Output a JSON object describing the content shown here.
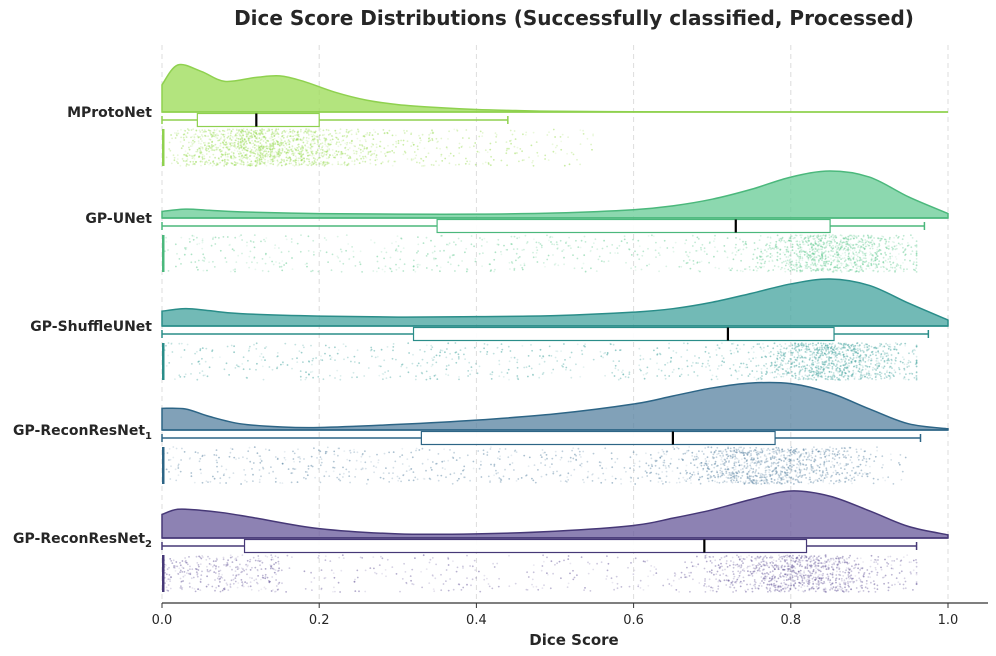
{
  "chart_data": {
    "type": "raincloud",
    "title": "Dice Score Distributions (Successfully classified, Processed)",
    "xlabel": "Dice Score",
    "xlim": [
      0.0,
      1.0
    ],
    "xticks": [
      0.0,
      0.2,
      0.4,
      0.6,
      0.8,
      1.0
    ],
    "xtick_labels": [
      "0.0",
      "0.2",
      "0.4",
      "0.6",
      "0.8",
      "1.0"
    ],
    "grid": "vertical dashed",
    "series": [
      {
        "name": "MProtoNet",
        "base": "MProtoNet",
        "sub": "",
        "color": "#9ddd5a",
        "edge": "#8fd14f",
        "box": {
          "whisker_low": 0.0,
          "q1": 0.045,
          "median": 0.12,
          "q3": 0.2,
          "whisker_high": 0.44
        },
        "density_x": [
          0.0,
          0.02,
          0.05,
          0.08,
          0.12,
          0.15,
          0.18,
          0.22,
          0.26,
          0.3,
          0.35,
          0.4,
          0.45,
          0.5,
          0.6,
          0.7,
          0.8,
          0.9,
          1.0
        ],
        "density_y": [
          0.55,
          0.95,
          0.82,
          0.62,
          0.7,
          0.73,
          0.62,
          0.4,
          0.24,
          0.15,
          0.09,
          0.05,
          0.03,
          0.015,
          0.005,
          0.002,
          0.0,
          0.0,
          0.0
        ],
        "points": {
          "count": 1600,
          "seed": 11,
          "dist": "low"
        }
      },
      {
        "name": "GP-UNet",
        "base": "GP-UNet",
        "sub": "",
        "color": "#6ccd98",
        "edge": "#4bb87c",
        "box": {
          "whisker_low": 0.0,
          "q1": 0.35,
          "median": 0.73,
          "q3": 0.85,
          "whisker_high": 0.97
        },
        "density_x": [
          0.0,
          0.03,
          0.06,
          0.1,
          0.2,
          0.3,
          0.4,
          0.5,
          0.6,
          0.65,
          0.7,
          0.75,
          0.8,
          0.85,
          0.9,
          0.95,
          1.0
        ],
        "density_y": [
          0.12,
          0.16,
          0.14,
          0.11,
          0.08,
          0.07,
          0.07,
          0.09,
          0.15,
          0.22,
          0.34,
          0.52,
          0.74,
          0.85,
          0.74,
          0.38,
          0.08
        ],
        "points": {
          "count": 1500,
          "seed": 22,
          "dist": "high"
        }
      },
      {
        "name": "GP-ShuffleUNet",
        "base": "GP-ShuffleUNet",
        "sub": "",
        "color": "#4aa7a2",
        "edge": "#2a8d89",
        "box": {
          "whisker_low": 0.0,
          "q1": 0.32,
          "median": 0.72,
          "q3": 0.855,
          "whisker_high": 0.975
        },
        "density_x": [
          0.0,
          0.03,
          0.06,
          0.1,
          0.2,
          0.3,
          0.4,
          0.5,
          0.6,
          0.65,
          0.7,
          0.75,
          0.8,
          0.85,
          0.9,
          0.95,
          1.0
        ],
        "density_y": [
          0.3,
          0.35,
          0.31,
          0.25,
          0.2,
          0.18,
          0.19,
          0.21,
          0.28,
          0.35,
          0.48,
          0.66,
          0.85,
          0.95,
          0.82,
          0.46,
          0.12
        ],
        "points": {
          "count": 1500,
          "seed": 33,
          "dist": "high"
        }
      },
      {
        "name": "GP-ReconResNet1",
        "base": "GP-ReconResNet",
        "sub": "1",
        "color": "#5d86a4",
        "edge": "#2d6586",
        "box": {
          "whisker_low": 0.0,
          "q1": 0.33,
          "median": 0.65,
          "q3": 0.78,
          "whisker_high": 0.965
        },
        "density_x": [
          0.0,
          0.03,
          0.06,
          0.1,
          0.15,
          0.2,
          0.3,
          0.4,
          0.5,
          0.6,
          0.65,
          0.7,
          0.75,
          0.8,
          0.85,
          0.9,
          0.95,
          1.0
        ],
        "density_y": [
          0.35,
          0.34,
          0.22,
          0.1,
          0.05,
          0.04,
          0.09,
          0.16,
          0.26,
          0.42,
          0.55,
          0.68,
          0.76,
          0.75,
          0.6,
          0.34,
          0.1,
          0.02
        ],
        "points": {
          "count": 1500,
          "seed": 44,
          "dist": "mid"
        }
      },
      {
        "name": "GP-ReconResNet2",
        "base": "GP-ReconResNet",
        "sub": "2",
        "color": "#6d5f9e",
        "edge": "#463877",
        "box": {
          "whisker_low": 0.0,
          "q1": 0.105,
          "median": 0.69,
          "q3": 0.82,
          "whisker_high": 0.96
        },
        "density_x": [
          0.0,
          0.02,
          0.05,
          0.08,
          0.12,
          0.2,
          0.3,
          0.4,
          0.5,
          0.6,
          0.65,
          0.7,
          0.75,
          0.8,
          0.85,
          0.9,
          0.95,
          1.0
        ],
        "density_y": [
          0.45,
          0.55,
          0.53,
          0.48,
          0.38,
          0.18,
          0.08,
          0.08,
          0.13,
          0.24,
          0.38,
          0.54,
          0.74,
          0.9,
          0.8,
          0.52,
          0.22,
          0.06
        ],
        "points": {
          "count": 1500,
          "seed": 55,
          "dist": "mid2"
        }
      }
    ]
  }
}
